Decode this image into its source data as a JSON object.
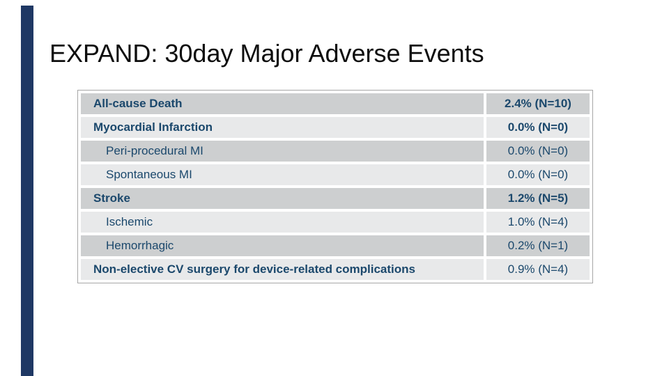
{
  "slide": {
    "title": "EXPAND: 30day Major Adverse Events"
  },
  "colors": {
    "background": "#FFFFFF",
    "accent_bar": "#1F3864",
    "title_text": "#0D0D0D",
    "row_dark": "#CDCFD0",
    "row_light": "#E8E9EA",
    "table_text": "#1B486C",
    "table_border": "#A6A6A6"
  },
  "table": {
    "rows": [
      {
        "label": "All-cause Death",
        "value": "2.4% (N=10)",
        "bold_label": true,
        "bold_value": true,
        "indent": false,
        "shade": "dark"
      },
      {
        "label": "Myocardial Infarction",
        "value": "0.0% (N=0)",
        "bold_label": true,
        "bold_value": true,
        "indent": false,
        "shade": "light"
      },
      {
        "label": "Peri-procedural MI",
        "value": "0.0% (N=0)",
        "bold_label": false,
        "bold_value": false,
        "indent": true,
        "shade": "dark"
      },
      {
        "label": "Spontaneous MI",
        "value": "0.0% (N=0)",
        "bold_label": false,
        "bold_value": false,
        "indent": true,
        "shade": "light"
      },
      {
        "label": "Stroke",
        "value": "1.2% (N=5)",
        "bold_label": true,
        "bold_value": true,
        "indent": false,
        "shade": "dark"
      },
      {
        "label": "Ischemic",
        "value": "1.0% (N=4)",
        "bold_label": false,
        "bold_value": false,
        "indent": true,
        "shade": "light"
      },
      {
        "label": "Hemorrhagic",
        "value": "0.2% (N=1)",
        "bold_label": false,
        "bold_value": false,
        "indent": true,
        "shade": "dark"
      },
      {
        "label": "Non-elective CV surgery for device-related complications",
        "value": "0.9% (N=4)",
        "bold_label": true,
        "bold_value": false,
        "indent": false,
        "shade": "light"
      }
    ]
  }
}
